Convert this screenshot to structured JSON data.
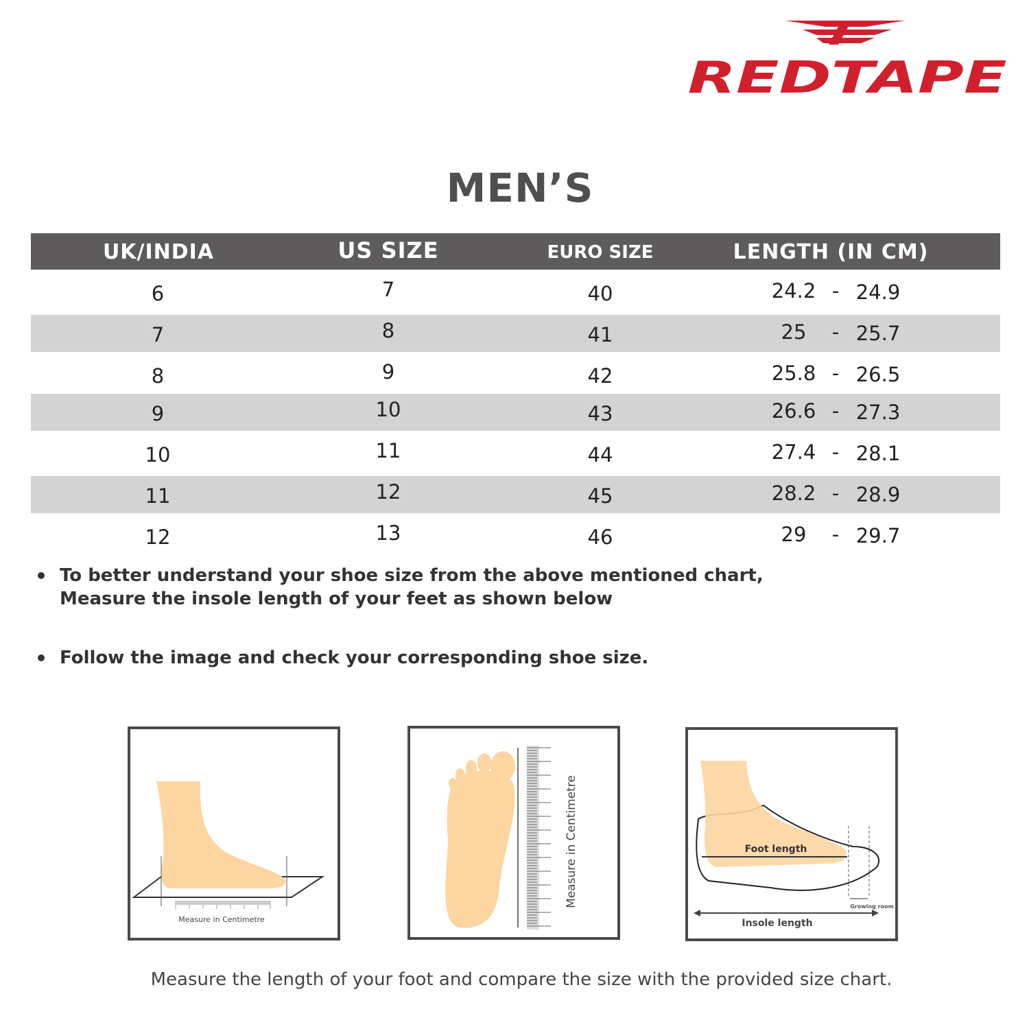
{
  "brand": {
    "name": "REDTAPE",
    "color": "#d0202e"
  },
  "title": "MEN’S",
  "table": {
    "headers": [
      "UK/INDIA",
      "US SIZE",
      "EURO SIZE",
      "LENGTH (IN CM)"
    ],
    "rows": [
      {
        "uk": "6",
        "us": "7",
        "euro": "40",
        "len_min": "24.2",
        "len_max": "24.9"
      },
      {
        "uk": "7",
        "us": "8",
        "euro": "41",
        "len_min": "25",
        "len_max": "25.7"
      },
      {
        "uk": "8",
        "us": "9",
        "euro": "42",
        "len_min": "25.8",
        "len_max": "26.5"
      },
      {
        "uk": "9",
        "us": "10",
        "euro": "43",
        "len_min": "26.6",
        "len_max": "27.3"
      },
      {
        "uk": "10",
        "us": "11",
        "euro": "44",
        "len_min": "27.4",
        "len_max": "28.1"
      },
      {
        "uk": "11",
        "us": "12",
        "euro": "45",
        "len_min": "28.2",
        "len_max": "28.9"
      },
      {
        "uk": "12",
        "us": "13",
        "euro": "46",
        "len_min": "29",
        "len_max": "29.7"
      }
    ],
    "separator": "-",
    "header_color": "#5d5b5c",
    "stripe_color": "#d3d3d3"
  },
  "bullets": [
    "To better understand your shoe size from the above mentioned chart,\nMeasure the insole length of your feet as shown below",
    "Follow the image and check your corresponding shoe size."
  ],
  "illustrations": {
    "side_label": "Measure in Centimetre",
    "sole_label": "Measure in Centimetre",
    "foot_length": "Foot length",
    "growing_room": "Growing room",
    "insole_length": "Insole length",
    "skin_color": "#fdd5a0"
  },
  "footer": "Measure the length of your foot and compare the size with the provided size chart."
}
